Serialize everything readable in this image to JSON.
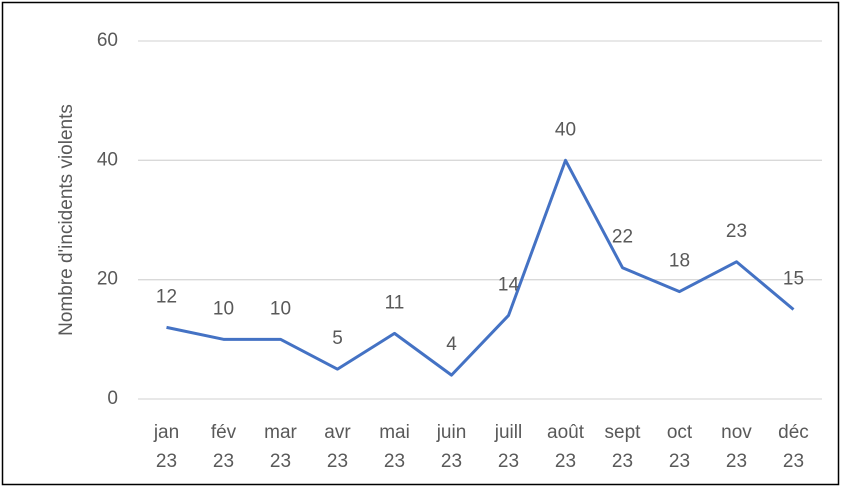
{
  "chart_data": {
    "type": "line",
    "y_label": "Nombre d'incidents violents",
    "categories": [
      "jan 23",
      "fév 23",
      "mar 23",
      "avr 23",
      "mai 23",
      "juin 23",
      "juill 23",
      "août 23",
      "sept 23",
      "oct 23",
      "nov 23",
      "déc 23"
    ],
    "values": [
      12,
      10,
      10,
      5,
      11,
      4,
      14,
      40,
      22,
      18,
      23,
      15
    ],
    "color": "#4472c4",
    "ylim": [
      0,
      60
    ],
    "yticks": [
      0,
      20,
      40,
      60
    ],
    "grid": true
  }
}
